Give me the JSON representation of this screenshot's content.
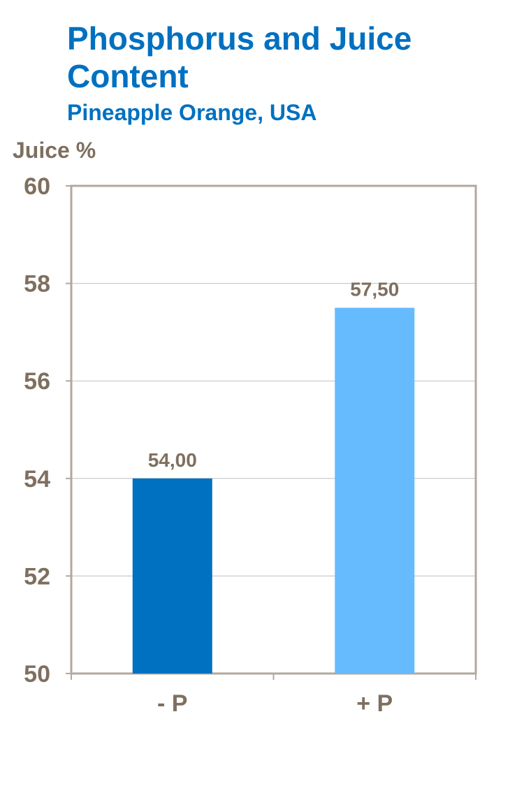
{
  "chart_data": {
    "type": "bar",
    "title": "Phosphorus and Juice Content",
    "subtitle": "Pineapple Orange, USA",
    "ylabel": "Juice %",
    "xlabel": "",
    "categories": [
      "- P",
      "+ P"
    ],
    "values": [
      54.0,
      57.5
    ],
    "value_labels": [
      "54,00",
      "57,50"
    ],
    "ylim": [
      50,
      60
    ],
    "yticks": [
      50,
      52,
      54,
      56,
      58,
      60
    ],
    "bar_colors": [
      "#0070C0",
      "#66BBFF"
    ],
    "grid": true,
    "legend": "none"
  },
  "colors": {
    "title": "#0070C0",
    "text": "#7F6F5F",
    "axis": "#B3A89C",
    "grid": "#BFBFBF"
  }
}
